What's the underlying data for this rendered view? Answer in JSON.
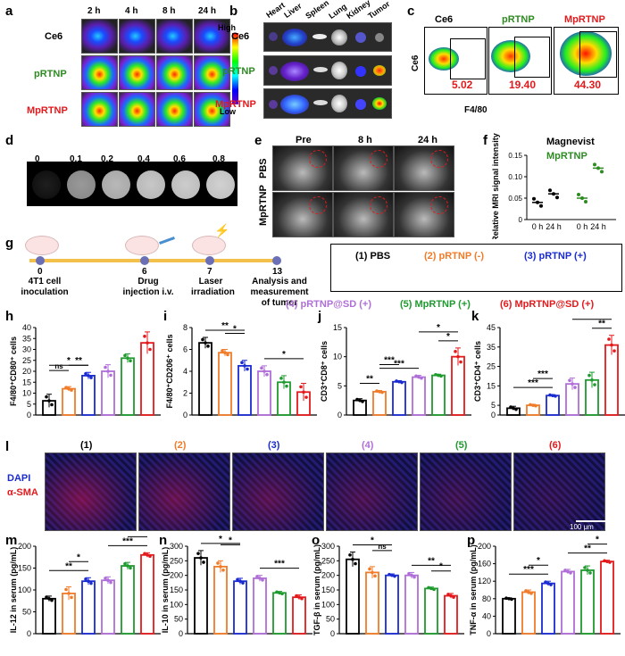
{
  "panels": {
    "a": "a",
    "b": "b",
    "c": "c",
    "d": "d",
    "e": "e",
    "f": "f",
    "g": "g",
    "h": "h",
    "i": "i",
    "j": "j",
    "k": "k",
    "l": "l",
    "m": "m",
    "n": "n",
    "o": "o",
    "p": "p"
  },
  "a": {
    "times": [
      "2 h",
      "4 h",
      "8 h",
      "24 h"
    ],
    "rows": [
      "Ce6",
      "pRTNP",
      "MpRTNP"
    ],
    "row_colors": [
      "#000000",
      "#2e8b22",
      "#e3191c"
    ],
    "scale_high": "High",
    "scale_low": "Low"
  },
  "b": {
    "organs": [
      "Heart",
      "Liver",
      "Spleen",
      "Lung",
      "Kidney",
      "Tumor"
    ],
    "rows": [
      "Ce6",
      "pRTNP",
      "MpRTNP"
    ]
  },
  "c": {
    "titles": [
      "Ce6",
      "pRTNP",
      "MpRTNP"
    ],
    "title_colors": [
      "#000000",
      "#2e8b22",
      "#e3191c"
    ],
    "values": [
      "5.02",
      "19.40",
      "44.30"
    ],
    "ylabel": "Ce6",
    "xlabel": "F4/80"
  },
  "d": {
    "concentrations": [
      "0",
      "0.1",
      "0.2",
      "0.4",
      "0.6",
      "0.8"
    ],
    "gray_levels": [
      0.12,
      0.6,
      0.72,
      0.78,
      0.8,
      0.82
    ]
  },
  "e": {
    "times": [
      "Pre",
      "8 h",
      "24 h"
    ],
    "rows": [
      "PBS",
      "MpRTNP"
    ]
  },
  "f": {
    "legend": [
      "Magnevist",
      "MpRTNP"
    ],
    "legend_colors": [
      "#000000",
      "#2e8b22"
    ],
    "ylabel": "Relative MRI signal intensity",
    "xticks": [
      "0 h",
      "24 h",
      "0 h",
      "24 h"
    ],
    "yticks": [
      "0",
      "0.05",
      "0.10",
      "0.15"
    ]
  },
  "g": {
    "steps": [
      {
        "num": "0",
        "label": "4T1 cell inoculation"
      },
      {
        "num": "6",
        "label": "Drug injection i.v."
      },
      {
        "num": "7",
        "label": "Laser irradiation"
      },
      {
        "num": "13",
        "label": "Analysis and measurement of tumor"
      }
    ],
    "groups": [
      {
        "label": "(1) PBS",
        "color": "#000000"
      },
      {
        "label": "(2) pRTNP (-)",
        "color": "#f07b28"
      },
      {
        "label": "(3) pRTNP (+)",
        "color": "#1a2bd1"
      },
      {
        "label": "(4) pRTNP@SD (+)",
        "color": "#b06fd8"
      },
      {
        "label": "(5) MpRTNP (+)",
        "color": "#1e9a2e"
      },
      {
        "label": "(6) MpRTNP@SD (+)",
        "color": "#e3191c"
      }
    ]
  },
  "l": {
    "labels": [
      "(1)",
      "(2)",
      "(3)",
      "(4)",
      "(5)",
      "(6)"
    ],
    "stain1": "DAPI",
    "stain2": "α-SMA",
    "scalebar": "100 μm"
  },
  "colors": [
    "#000000",
    "#f07b28",
    "#1a2bd1",
    "#b06fd8",
    "#1e9a2e",
    "#e3191c"
  ],
  "chart_data": [
    {
      "panel": "f",
      "type": "scatter",
      "ylabel": "Relative MRI signal intensity",
      "ylim": [
        0,
        0.15
      ],
      "series": [
        {
          "name": "Magnevist",
          "x": [
            "0 h",
            "24 h"
          ],
          "values": [
            0.04,
            0.06
          ]
        },
        {
          "name": "MpRTNP",
          "x": [
            "0 h",
            "24 h"
          ],
          "values": [
            0.05,
            0.12
          ]
        }
      ]
    },
    {
      "panel": "h",
      "type": "bar",
      "ylabel": "F4/80⁺CD80⁺ cells",
      "ylim": [
        0,
        40
      ],
      "yticks": [
        0,
        5,
        10,
        15,
        20,
        25,
        30,
        35,
        40
      ],
      "values": [
        6.5,
        12,
        18,
        20,
        26,
        33
      ],
      "errors": [
        3,
        1,
        1.5,
        3,
        2,
        5
      ],
      "sig": [
        {
          "a": 0,
          "b": 2,
          "t": "*"
        },
        {
          "a": 0,
          "b": 1,
          "t": "ns"
        },
        {
          "a": 1,
          "b": 2,
          "t": "**"
        },
        {
          "a": 3,
          "b": 5,
          "t": "*"
        }
      ]
    },
    {
      "panel": "i",
      "type": "bar",
      "ylabel": "F4/80⁺CD206⁺ cells",
      "ylim": [
        0,
        8
      ],
      "yticks": [
        0,
        2,
        4,
        6,
        8
      ],
      "values": [
        6.6,
        5.7,
        4.5,
        4.0,
        3.0,
        2.1
      ],
      "errors": [
        0.5,
        0.3,
        0.5,
        0.5,
        0.6,
        0.8
      ],
      "sig": [
        {
          "a": 0,
          "b": 2,
          "t": "**"
        },
        {
          "a": 1,
          "b": 2,
          "t": "*"
        },
        {
          "a": 3,
          "b": 5,
          "t": "*"
        }
      ]
    },
    {
      "panel": "j",
      "type": "bar",
      "ylabel": "CD3⁺CD8⁺ cells",
      "ylim": [
        0,
        15
      ],
      "yticks": [
        0,
        5,
        10,
        15
      ],
      "values": [
        2.5,
        4.0,
        5.7,
        6.5,
        6.8,
        10.0
      ],
      "errors": [
        0.3,
        0.2,
        0.2,
        0.3,
        0.2,
        1.5
      ],
      "sig": [
        {
          "a": 0,
          "b": 1,
          "t": "**"
        },
        {
          "a": 1,
          "b": 2,
          "t": "***"
        },
        {
          "a": 1,
          "b": 3,
          "t": "***"
        },
        {
          "a": 3,
          "b": 5,
          "t": "*"
        },
        {
          "a": 4,
          "b": 5,
          "t": "*"
        }
      ]
    },
    {
      "panel": "k",
      "type": "bar",
      "ylabel": "CD3⁺CD4⁺ cells",
      "ylim": [
        0,
        45
      ],
      "yticks": [
        0,
        5,
        15,
        25,
        35,
        45
      ],
      "values": [
        3.5,
        5.0,
        10,
        16,
        18,
        36
      ],
      "errors": [
        1,
        0.5,
        0.5,
        3,
        4,
        5
      ],
      "sig": [
        {
          "a": 0,
          "b": 2,
          "t": "***"
        },
        {
          "a": 1,
          "b": 2,
          "t": "***"
        },
        {
          "a": 4,
          "b": 5,
          "t": "**"
        },
        {
          "a": 3,
          "b": 5,
          "t": "**"
        }
      ]
    },
    {
      "panel": "m",
      "type": "bar",
      "ylabel": "IL-12 in serum (pg/mL)",
      "ylim": [
        0,
        200
      ],
      "yticks": [
        0,
        50,
        100,
        150,
        200
      ],
      "values": [
        80,
        92,
        120,
        122,
        155,
        180
      ],
      "errors": [
        6,
        15,
        8,
        8,
        8,
        5
      ],
      "sig": [
        {
          "a": 0,
          "b": 2,
          "t": "**"
        },
        {
          "a": 1,
          "b": 2,
          "t": "*"
        },
        {
          "a": 3,
          "b": 5,
          "t": "***"
        },
        {
          "a": 4,
          "b": 5,
          "t": "**"
        }
      ]
    },
    {
      "panel": "n",
      "type": "bar",
      "ylabel": "IL-10 in serum (pg/mL)",
      "ylim": [
        0,
        300
      ],
      "yticks": [
        0,
        50,
        100,
        150,
        200,
        250,
        300
      ],
      "values": [
        260,
        230,
        180,
        190,
        140,
        125
      ],
      "errors": [
        25,
        20,
        10,
        10,
        5,
        8
      ],
      "sig": [
        {
          "a": 0,
          "b": 2,
          "t": "*"
        },
        {
          "a": 1,
          "b": 2,
          "t": "*"
        },
        {
          "a": 3,
          "b": 5,
          "t": "***"
        }
      ]
    },
    {
      "panel": "o",
      "type": "bar",
      "ylabel": "TGF-β in serum (pg/mL)",
      "ylim": [
        0,
        300
      ],
      "yticks": [
        0,
        50,
        100,
        150,
        200,
        250,
        300
      ],
      "values": [
        255,
        210,
        200,
        200,
        155,
        130
      ],
      "errors": [
        25,
        20,
        5,
        10,
        5,
        8
      ],
      "sig": [
        {
          "a": 0,
          "b": 2,
          "t": "*"
        },
        {
          "a": 1,
          "b": 2,
          "t": "ns"
        },
        {
          "a": 3,
          "b": 5,
          "t": "**"
        },
        {
          "a": 4,
          "b": 5,
          "t": "*"
        }
      ]
    },
    {
      "panel": "p",
      "type": "bar",
      "ylabel": "TNF-α in serum (pg/mL)",
      "ylim": [
        0,
        200
      ],
      "yticks": [
        0,
        40,
        80,
        120,
        160,
        200
      ],
      "values": [
        80,
        95,
        115,
        142,
        145,
        165
      ],
      "errors": [
        2,
        5,
        5,
        5,
        10,
        3
      ],
      "sig": [
        {
          "a": 0,
          "b": 2,
          "t": "***"
        },
        {
          "a": 1,
          "b": 2,
          "t": "*"
        },
        {
          "a": 3,
          "b": 5,
          "t": "**"
        },
        {
          "a": 4,
          "b": 5,
          "t": "*"
        }
      ]
    }
  ]
}
